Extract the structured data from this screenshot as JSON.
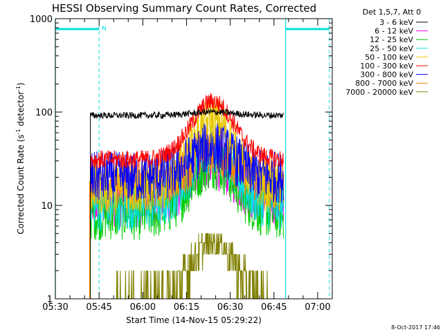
{
  "chart_data": {
    "type": "line",
    "title": "HESSI Observing Summary Count Rates, Corrected",
    "xlabel": "Start Time (14-Nov-15 05:29:22)",
    "ylabel_main": "Corrected Count Rate (s",
    "ylabel_sup1": "-1",
    "ylabel_mid": " detector",
    "ylabel_sup2": "-1",
    "ylabel_end": ")",
    "x_range_minutes": [
      0,
      95
    ],
    "y_scale": "log",
    "ylim": [
      1,
      1000
    ],
    "x_ticks": [
      {
        "minute": 0,
        "label": "05:30"
      },
      {
        "minute": 15,
        "label": "05:45"
      },
      {
        "minute": 30,
        "label": "06:00"
      },
      {
        "minute": 45,
        "label": "06:15"
      },
      {
        "minute": 60,
        "label": "06:30"
      },
      {
        "minute": 75,
        "label": "06:45"
      },
      {
        "minute": 90,
        "label": "07:00"
      }
    ],
    "y_ticks": [
      {
        "value": 1,
        "label": "1"
      },
      {
        "value": 10,
        "label": "10"
      },
      {
        "value": 100,
        "label": "100"
      },
      {
        "value": 1000,
        "label": "1000"
      }
    ],
    "legend_header": "Det 1,5,7, Att 0",
    "series": [
      {
        "name": "3 - 6 keV",
        "color": "#000000",
        "base": 92,
        "peak": 100
      },
      {
        "name": "6 - 12 keV",
        "color": "#ff00ff",
        "base": 11,
        "peak": 28
      },
      {
        "name": "12 - 25 keV",
        "color": "#00cc00",
        "base": 8,
        "peak": 28
      },
      {
        "name": "25 - 50 keV",
        "color": "#00e0e0",
        "base": 10,
        "peak": 42
      },
      {
        "name": "50 - 100 keV",
        "color": "#e6c800",
        "base": 15,
        "peak": 80
      },
      {
        "name": "100 - 300 keV",
        "color": "#ff0000",
        "base": 31,
        "peak": 130
      },
      {
        "name": "300 - 800 keV",
        "color": "#0000ff",
        "base": 20,
        "peak": 42
      },
      {
        "name": "800 - 7000 keV",
        "color": "#ff8000",
        "base": 18,
        "peak": 40
      },
      {
        "name": "7000 - 20000 keV",
        "color": "#808000",
        "base": 1,
        "peak": 4
      }
    ],
    "observing_markers": {
      "night_label": "N",
      "solid_lines_minutes": [
        0,
        79
      ],
      "dashed_lines_minutes": [
        15,
        94
      ],
      "top_bars_minutes": [
        [
          0,
          15
        ],
        [
          79,
          94
        ]
      ]
    },
    "data_start_minute": 12,
    "flare_peak_minute": 54
  },
  "footer_timestamp": "8-Oct-2017 17:46"
}
